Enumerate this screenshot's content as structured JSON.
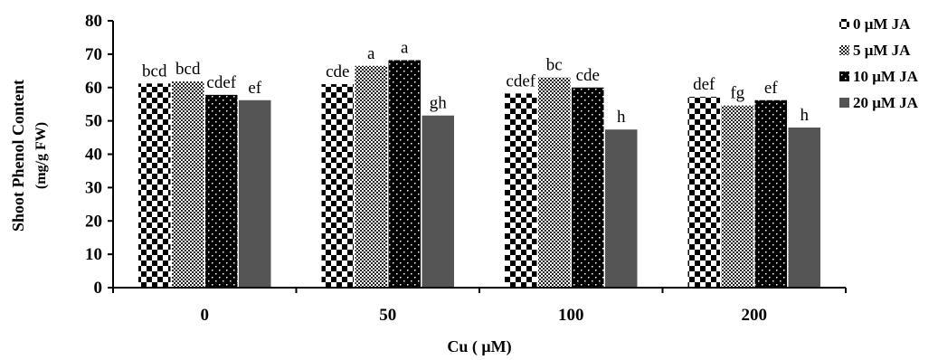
{
  "chart_data": {
    "type": "bar",
    "categories": [
      "0",
      "50",
      "100",
      "200"
    ],
    "xlabel": "Cu ( μM)",
    "ylabel": "Shoot Phenol Content",
    "ylabel_unit": "(mg/g FW)",
    "ylim": [
      0,
      80
    ],
    "yticks": [
      "0",
      "10",
      "20",
      "30",
      "40",
      "50",
      "60",
      "70",
      "80"
    ],
    "grid": false,
    "legend_position": "top-right",
    "series": [
      {
        "name": "0 μM JA",
        "values": [
          61.2,
          61.0,
          58.2,
          57.2
        ],
        "labels": [
          "bcd",
          "cde",
          "cdef",
          "def"
        ],
        "pattern": "checker"
      },
      {
        "name": "5 μM JA",
        "values": [
          61.8,
          66.5,
          63.0,
          54.6
        ],
        "labels": [
          "bcd",
          "a",
          "bc",
          "fg"
        ],
        "pattern": "fine"
      },
      {
        "name": "10 μM JA",
        "values": [
          57.8,
          68.2,
          60.0,
          56.2
        ],
        "labels": [
          "cdef",
          "a",
          "cde",
          "ef"
        ],
        "pattern": "dots"
      },
      {
        "name": "20 μM JA",
        "values": [
          56.2,
          51.6,
          47.4,
          48.0
        ],
        "labels": [
          "ef",
          "gh",
          "h",
          "h"
        ],
        "pattern": "solid"
      }
    ]
  }
}
